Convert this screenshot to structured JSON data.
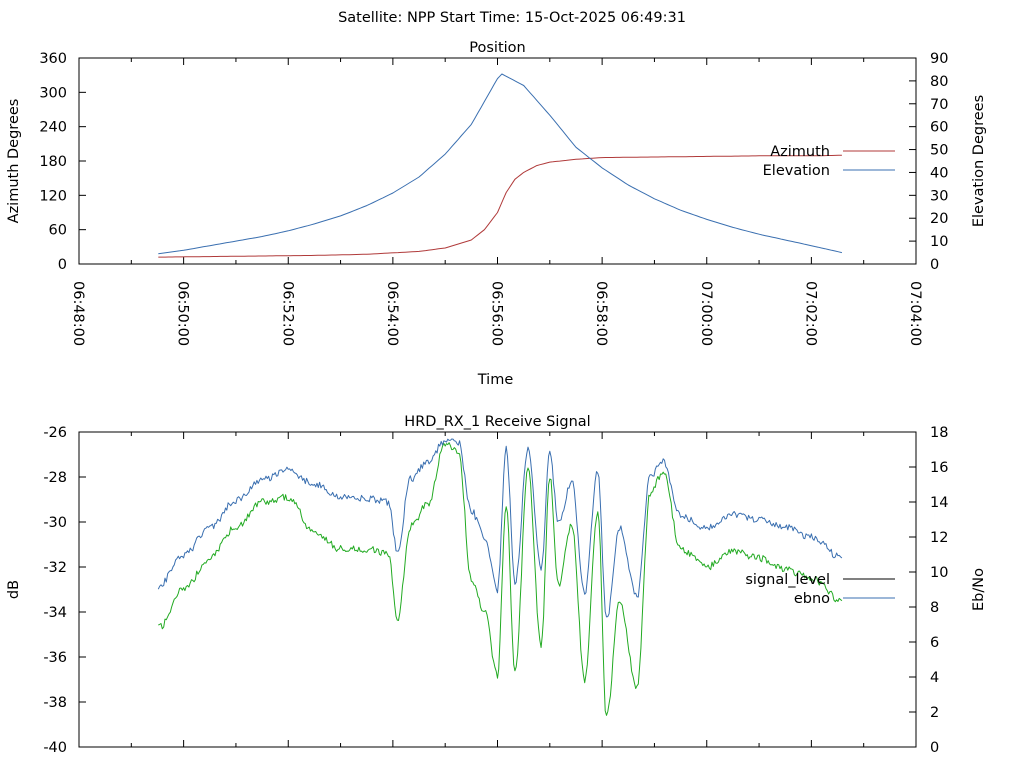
{
  "header": {
    "text": "Satellite: NPP    Start Time: 15-Oct-2025 06:49:31"
  },
  "colors": {
    "azimuth": "#b03a3a",
    "elevation": "#3a6fb0",
    "signal_level": "#000000",
    "ebno": "#3a6fb0",
    "signal_trace": "#22aa22"
  },
  "chart_data": [
    {
      "type": "line",
      "title": "Position",
      "xlabel": "Time",
      "ylabel": "Azimuth Degrees",
      "y2label": "Elevation Degrees",
      "xlim": [
        "06:48:00",
        "07:04:00"
      ],
      "x_ticks": [
        "06:48:00",
        "06:50:00",
        "06:52:00",
        "06:54:00",
        "06:56:00",
        "06:58:00",
        "07:00:00",
        "07:02:00",
        "07:04:00"
      ],
      "ylim": [
        0,
        360
      ],
      "y_ticks": [
        "0",
        "60",
        "120",
        "180",
        "240",
        "300",
        "360"
      ],
      "y2lim": [
        0,
        90
      ],
      "y2_ticks": [
        "0",
        "10",
        "20",
        "30",
        "40",
        "50",
        "60",
        "70",
        "80",
        "90"
      ],
      "legend_position": "right",
      "grid": false,
      "series": [
        {
          "name": "Azimuth",
          "axis": "left",
          "x": [
            "06:49:31",
            "06:50:30",
            "06:51:30",
            "06:52:30",
            "06:53:30",
            "06:54:30",
            "06:55:00",
            "06:55:30",
            "06:55:45",
            "06:56:00",
            "06:56:10",
            "06:56:20",
            "06:56:30",
            "06:56:45",
            "06:57:00",
            "06:57:30",
            "06:58:00",
            "06:59:00",
            "07:00:00",
            "07:01:00",
            "07:02:00",
            "07:02:35"
          ],
          "values": [
            12,
            13,
            14,
            15,
            17,
            22,
            28,
            42,
            60,
            90,
            125,
            148,
            160,
            172,
            178,
            183,
            186,
            187,
            188,
            189,
            189,
            190
          ]
        },
        {
          "name": "Elevation",
          "axis": "right",
          "x": [
            "06:49:31",
            "06:50:00",
            "06:50:30",
            "06:51:00",
            "06:51:30",
            "06:52:00",
            "06:52:30",
            "06:53:00",
            "06:53:30",
            "06:54:00",
            "06:54:30",
            "06:55:00",
            "06:55:30",
            "06:56:00",
            "06:56:05",
            "06:56:30",
            "06:57:00",
            "06:57:30",
            "06:58:00",
            "06:58:30",
            "06:59:00",
            "06:59:30",
            "07:00:00",
            "07:00:30",
            "07:01:00",
            "07:01:30",
            "07:02:00",
            "07:02:35"
          ],
          "values": [
            4.5,
            6,
            8,
            10,
            12,
            14.5,
            17.5,
            21,
            25.5,
            31,
            38,
            48,
            61,
            81,
            83,
            78,
            65,
            51,
            42,
            34.5,
            28.5,
            23.5,
            19.5,
            16,
            13,
            10.5,
            8,
            5
          ]
        }
      ]
    },
    {
      "type": "line",
      "title": "HRD_RX_1 Receive Signal",
      "ylabel": "dB",
      "y2label": "Eb/No",
      "xlim": [
        "06:48:00",
        "07:04:00"
      ],
      "ylim": [
        -40,
        -26
      ],
      "y_ticks": [
        "-40",
        "-38",
        "-36",
        "-34",
        "-32",
        "-30",
        "-28",
        "-26"
      ],
      "y2lim": [
        0,
        18
      ],
      "y2_ticks": [
        "0",
        "2",
        "4",
        "6",
        "8",
        "10",
        "12",
        "14",
        "16",
        "18"
      ],
      "legend_position": "right",
      "grid": false,
      "series": [
        {
          "name": "signal_level",
          "axis": "left",
          "x": [
            "06:49:31",
            "06:50:00",
            "06:50:30",
            "06:51:00",
            "06:51:30",
            "06:52:00",
            "06:52:30",
            "06:53:00",
            "06:53:30",
            "06:53:55",
            "06:54:05",
            "06:54:20",
            "06:54:40",
            "06:55:00",
            "06:55:15",
            "06:55:30",
            "06:55:45",
            "06:56:00",
            "06:56:10",
            "06:56:20",
            "06:56:35",
            "06:56:50",
            "06:57:00",
            "06:57:10",
            "06:57:25",
            "06:57:40",
            "06:57:55",
            "06:58:05",
            "06:58:20",
            "06:58:40",
            "06:58:55",
            "06:59:10",
            "06:59:30",
            "07:00:00",
            "07:00:30",
            "07:01:00",
            "07:01:30",
            "07:02:00",
            "07:02:35"
          ],
          "values": [
            -34.7,
            -33,
            -31.6,
            -30.2,
            -29.1,
            -28.9,
            -30.5,
            -31.2,
            -31.2,
            -31.4,
            -34.4,
            -30.2,
            -29.2,
            -26.5,
            -26.8,
            -32.5,
            -34,
            -36.8,
            -29.2,
            -36.7,
            -27.7,
            -35.5,
            -28,
            -32.8,
            -30.1,
            -37,
            -29.5,
            -38.7,
            -33.5,
            -37.4,
            -28.7,
            -27.8,
            -31.2,
            -32,
            -31.3,
            -31.6,
            -32.1,
            -32.5,
            -33.5
          ]
        },
        {
          "name": "ebno",
          "axis": "right",
          "x": [
            "06:49:31",
            "06:50:00",
            "06:50:30",
            "06:51:00",
            "06:51:30",
            "06:52:00",
            "06:52:30",
            "06:53:00",
            "06:53:30",
            "06:53:55",
            "06:54:05",
            "06:54:20",
            "06:54:40",
            "06:55:00",
            "06:55:15",
            "06:55:30",
            "06:55:45",
            "06:56:00",
            "06:56:10",
            "06:56:20",
            "06:56:35",
            "06:56:50",
            "06:57:00",
            "06:57:10",
            "06:57:25",
            "06:57:40",
            "06:57:55",
            "06:58:05",
            "06:58:20",
            "06:58:40",
            "06:58:55",
            "06:59:10",
            "06:59:30",
            "07:00:00",
            "07:00:30",
            "07:01:00",
            "07:01:30",
            "07:02:00",
            "07:02:35"
          ],
          "values": [
            9.2,
            11,
            12.5,
            14.1,
            15.3,
            15.8,
            15,
            14.3,
            14.2,
            14,
            11.2,
            15.3,
            16.3,
            17.5,
            17.4,
            13.5,
            12,
            9,
            17.1,
            9.3,
            17,
            10.2,
            16.8,
            12.8,
            15.2,
            8.8,
            15.8,
            7.3,
            12.5,
            8.6,
            15.5,
            16.3,
            13.2,
            12.5,
            13.3,
            13,
            12.6,
            12,
            10.8
          ]
        }
      ]
    }
  ]
}
